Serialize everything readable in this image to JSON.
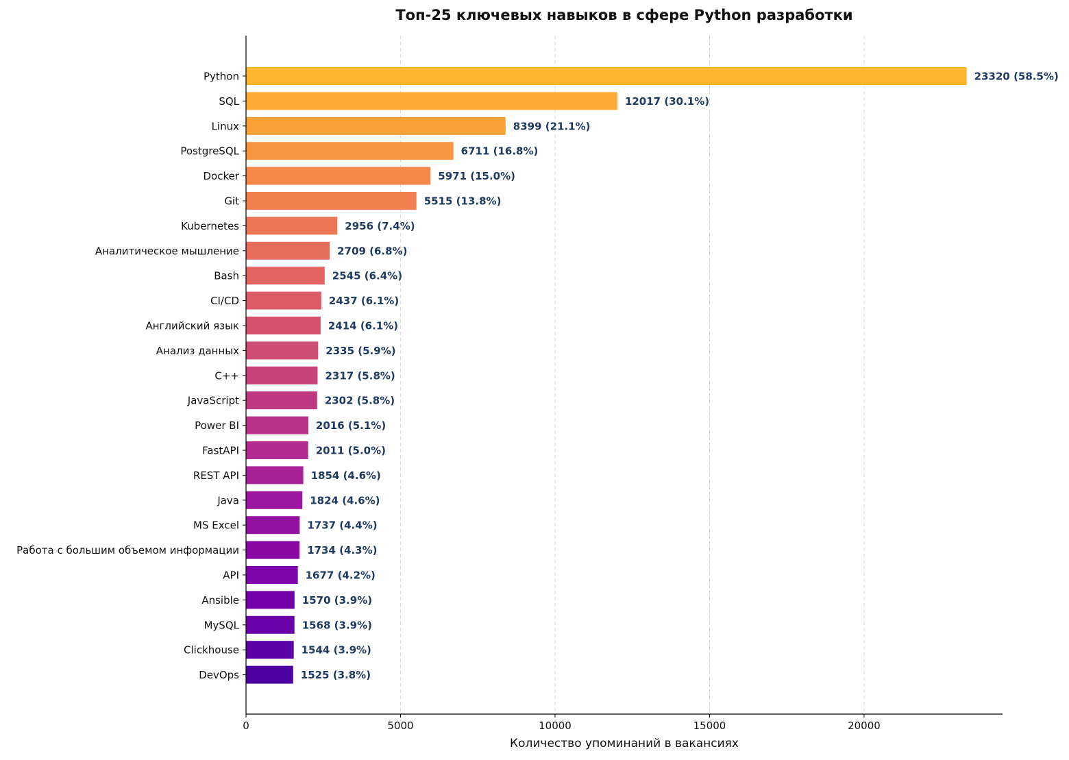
{
  "chart_data": {
    "type": "bar",
    "orientation": "horizontal",
    "title": "Топ-25 ключевых навыков в сфере Python разработки",
    "xlabel": "Количество упоминаний в вакансиях",
    "ylabel": "",
    "xlim": [
      0,
      24480
    ],
    "xticks": [
      0,
      5000,
      10000,
      15000,
      20000
    ],
    "grid": "vertical dashed",
    "categories": [
      "Python",
      "SQL",
      "Linux",
      "PostgreSQL",
      "Docker",
      "Git",
      "Kubernetes",
      "Аналитическое мышление",
      "Bash",
      "CI/CD",
      "Английский язык",
      "Анализ данных",
      "C++",
      "JavaScript",
      "Power BI",
      "FastAPI",
      "REST API",
      "Java",
      "MS Excel",
      "Работа с большим объемом информации",
      "API",
      "Ansible",
      "MySQL",
      "Clickhouse",
      "DevOps"
    ],
    "values": [
      23320,
      12017,
      8399,
      6711,
      5971,
      5515,
      2956,
      2709,
      2545,
      2437,
      2414,
      2335,
      2317,
      2302,
      2016,
      2011,
      1854,
      1824,
      1737,
      1734,
      1677,
      1570,
      1568,
      1544,
      1525
    ],
    "value_labels": [
      "23320 (58.5%)",
      "12017 (30.1%)",
      "8399 (21.1%)",
      "6711 (16.8%)",
      "5971 (15.0%)",
      "5515 (13.8%)",
      "2956 (7.4%)",
      "2709 (6.8%)",
      "2545 (6.4%)",
      "2437 (6.1%)",
      "2414 (6.1%)",
      "2335 (5.9%)",
      "2317 (5.8%)",
      "2302 (5.8%)",
      "2016 (5.1%)",
      "2011 (5.0%)",
      "1854 (4.6%)",
      "1824 (4.6%)",
      "1737 (4.4%)",
      "1734 (4.3%)",
      "1677 (4.2%)",
      "1570 (3.9%)",
      "1568 (3.9%)",
      "1544 (3.9%)",
      "1525 (3.8%)"
    ],
    "bar_colors": [
      "#fdb42f",
      "#fcac32",
      "#faa035",
      "#f89540",
      "#f48849",
      "#f07f4f",
      "#eb7655",
      "#e66c5c",
      "#e16462",
      "#db5c68",
      "#d5536f",
      "#cf4c74",
      "#c8437b",
      "#c03a83",
      "#b83289",
      "#b12a90",
      "#a72197",
      "#9c179e",
      "#9511a1",
      "#8a09a5",
      "#7e03a8",
      "#7201a8",
      "#6a00a8",
      "#5c01a6",
      "#4c02a1"
    ],
    "value_label_color": "#1f3a60"
  }
}
